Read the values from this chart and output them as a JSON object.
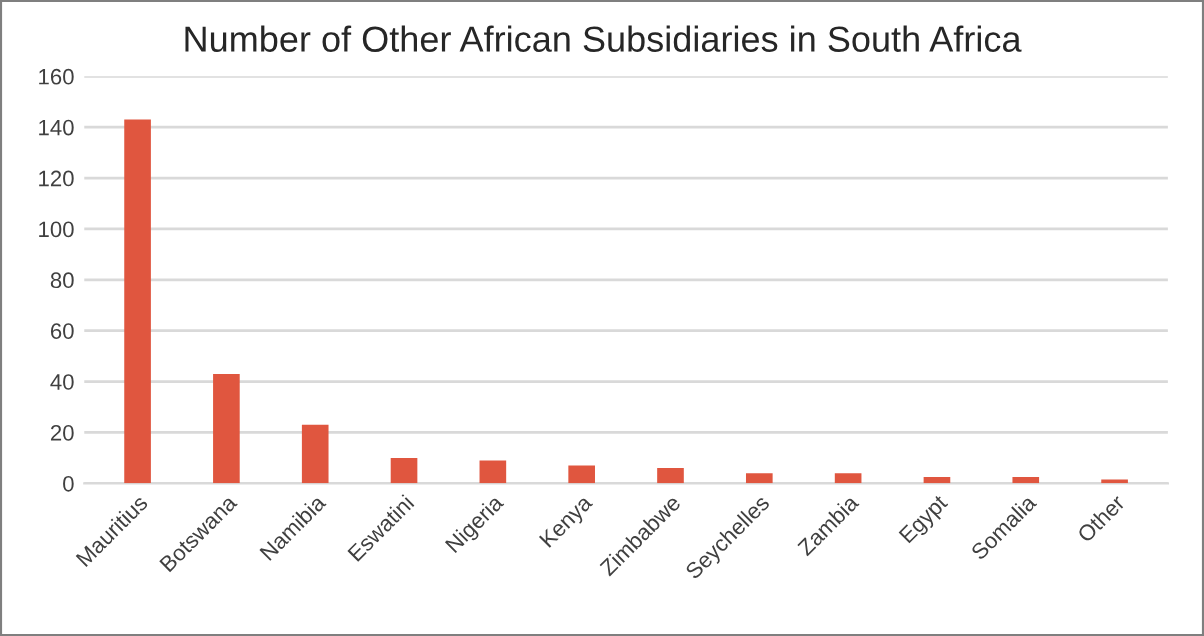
{
  "chart_data": {
    "type": "bar",
    "title": "Number of Other African Subsidiaries in South Africa",
    "categories": [
      "Mauritius",
      "Botswana",
      "Namibia",
      "Eswatini",
      "Nigeria",
      "Kenya",
      "Zimbabwe",
      "Seychelles",
      "Zambia",
      "Egypt",
      "Somalia",
      "Other"
    ],
    "values": [
      143,
      43,
      23,
      10,
      9,
      7,
      6,
      4,
      4,
      2.5,
      2.5,
      1.5
    ],
    "color": "#e0563f",
    "ylim": [
      0,
      160
    ],
    "yticks": [
      0,
      20,
      40,
      60,
      80,
      100,
      120,
      140,
      160
    ],
    "grid": "y",
    "legend": false
  }
}
